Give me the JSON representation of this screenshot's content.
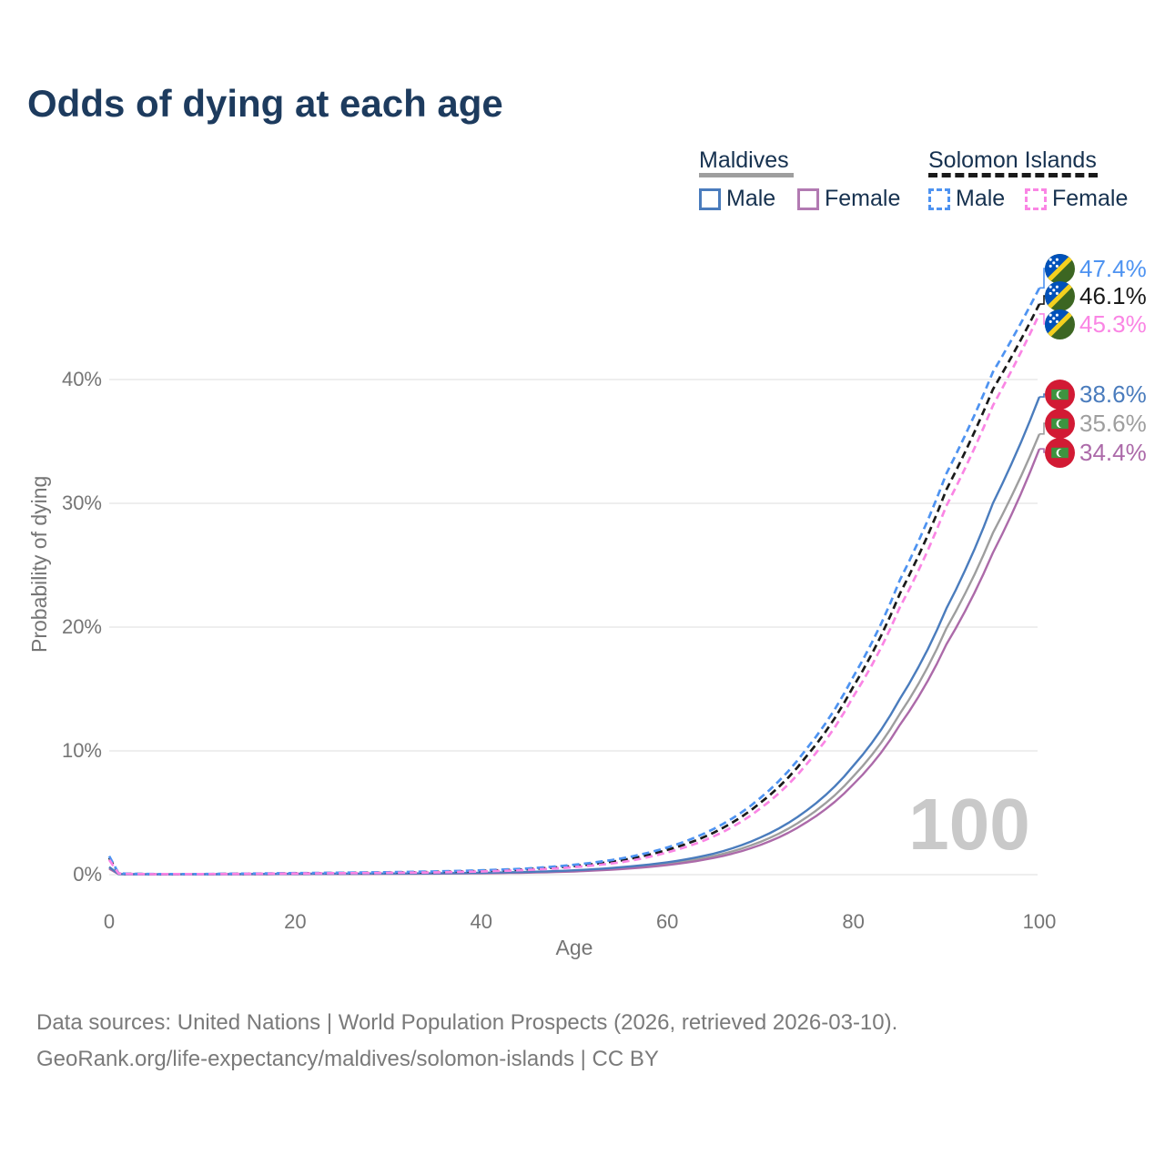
{
  "title": "Odds of dying at each age",
  "watermark": "100",
  "legend": {
    "groups": [
      {
        "name": "Maldives",
        "line_style": "solid",
        "line_color": "#9e9e9e",
        "items": [
          {
            "label": "Male",
            "color": "#4a7cbd",
            "dashed": false
          },
          {
            "label": "Female",
            "color": "#b27ab2",
            "dashed": false
          }
        ]
      },
      {
        "name": "Solomon Islands",
        "line_style": "dashed",
        "line_color": "#1a1a1a",
        "items": [
          {
            "label": "Male",
            "color": "#4e93f1",
            "dashed": true
          },
          {
            "label": "Female",
            "color": "#fa85e4",
            "dashed": true
          }
        ]
      }
    ]
  },
  "footer": {
    "line1": "Data sources: United Nations | World Population Prospects (2026, retrieved 2026-03-10).",
    "line2": "GeoRank.org/life-expectancy/maldives/solomon-islands | CC BY"
  },
  "flag_colors": {
    "maldives": {
      "red": "#d21a34",
      "green": "#3d9440",
      "crescent": "#ffffff"
    },
    "solomon_islands": {
      "blue": "#0051ba",
      "green": "#3c6622",
      "yellow": "#f4d01f",
      "stars": "#ffffff"
    }
  },
  "chart_data": {
    "type": "line",
    "title": "Odds of dying at each age",
    "xlabel": "Age",
    "ylabel": "Probability of dying",
    "x_ticks": [
      0,
      20,
      40,
      60,
      80,
      100
    ],
    "y_ticks": [
      {
        "pct": 0,
        "label": "0%"
      },
      {
        "pct": 10,
        "label": "10%"
      },
      {
        "pct": 20,
        "label": "20%"
      },
      {
        "pct": 30,
        "label": "30%"
      },
      {
        "pct": 40,
        "label": "40%"
      }
    ],
    "xlim": [
      0,
      100
    ],
    "ylim_pct": [
      0,
      48
    ],
    "grid": "horizontal",
    "ages": [
      0,
      1,
      2,
      5,
      10,
      15,
      20,
      25,
      30,
      35,
      40,
      45,
      50,
      55,
      60,
      65,
      70,
      75,
      80,
      85,
      90,
      95,
      100
    ],
    "series": [
      {
        "name": "Maldives — Both sexes",
        "flag": "maldives",
        "color": "#9e9e9e",
        "dashed": false,
        "end_label": "35.6%",
        "label_row": 4,
        "values": [
          0.55,
          0.05,
          0.035,
          0.028,
          0.03,
          0.042,
          0.058,
          0.068,
          0.078,
          0.096,
          0.13,
          0.19,
          0.3,
          0.52,
          0.88,
          1.5,
          2.65,
          4.65,
          7.95,
          13.0,
          19.9,
          27.6,
          35.6
        ]
      },
      {
        "name": "Maldives — Female",
        "flag": "maldives",
        "color": "#ac6aa9",
        "dashed": false,
        "end_label": "34.4%",
        "label_row": 5,
        "values": [
          0.48,
          0.045,
          0.03,
          0.025,
          0.027,
          0.035,
          0.045,
          0.055,
          0.065,
          0.082,
          0.11,
          0.16,
          0.26,
          0.45,
          0.78,
          1.35,
          2.4,
          4.25,
          7.3,
          12.1,
          18.6,
          26.0,
          34.4
        ]
      },
      {
        "name": "Maldives — Male",
        "flag": "maldives",
        "color": "#4a7cbd",
        "dashed": false,
        "end_label": "38.6%",
        "label_row": 3,
        "values": [
          0.62,
          0.055,
          0.04,
          0.03,
          0.035,
          0.05,
          0.07,
          0.08,
          0.09,
          0.11,
          0.15,
          0.22,
          0.35,
          0.6,
          1.0,
          1.7,
          3.0,
          5.2,
          8.8,
          14.2,
          21.5,
          30.0,
          38.6
        ]
      },
      {
        "name": "Solomon Islands — Both sexes",
        "flag": "solomon_islands",
        "color": "#1a1a1a",
        "dashed": true,
        "end_label": "46.1%",
        "label_row": 1,
        "values": [
          1.35,
          0.11,
          0.065,
          0.045,
          0.05,
          0.08,
          0.11,
          0.14,
          0.17,
          0.22,
          0.3,
          0.44,
          0.7,
          1.15,
          2.0,
          3.4,
          5.8,
          9.6,
          15.2,
          22.7,
          31.1,
          39.2,
          46.1
        ]
      },
      {
        "name": "Solomon Islands — Male",
        "flag": "solomon_islands",
        "color": "#4e93f1",
        "dashed": true,
        "end_label": "47.4%",
        "label_row": 0,
        "values": [
          1.5,
          0.12,
          0.07,
          0.05,
          0.055,
          0.09,
          0.13,
          0.16,
          0.2,
          0.26,
          0.35,
          0.5,
          0.8,
          1.3,
          2.2,
          3.7,
          6.2,
          10.2,
          16.0,
          23.8,
          32.4,
          40.6,
          47.4
        ]
      },
      {
        "name": "Solomon Islands — Female",
        "flag": "solomon_islands",
        "color": "#fa85e4",
        "dashed": true,
        "end_label": "45.3%",
        "label_row": 2,
        "values": [
          1.2,
          0.1,
          0.06,
          0.04,
          0.045,
          0.07,
          0.095,
          0.12,
          0.145,
          0.185,
          0.255,
          0.38,
          0.61,
          1.0,
          1.8,
          3.1,
          5.35,
          8.95,
          14.4,
          21.6,
          29.8,
          37.9,
          45.3
        ]
      }
    ]
  }
}
